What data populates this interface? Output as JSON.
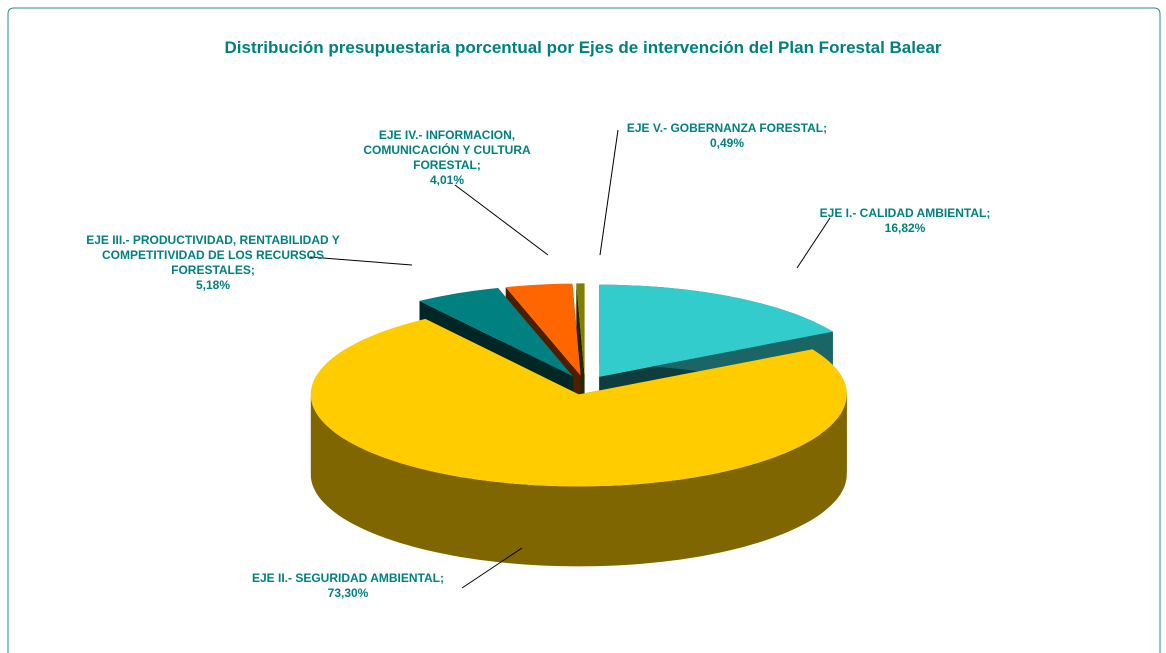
{
  "chart_data": {
    "type": "pie3d",
    "title": "Distribución presupuestaria porcentual por Ejes de intervención del Plan Forestal Balear",
    "categories": [
      "EJE I.- CALIDAD AMBIENTAL;",
      "EJE II.- SEGURIDAD AMBIENTAL;",
      "EJE III.-  PRODUCTIVIDAD, RENTABILIDAD Y COMPETITIVIDAD DE LOS RECURSOS FORESTALES;",
      "EJE IV.- INFORMACION, COMUNICACIÓN Y CULTURA FORESTAL;",
      "EJE V.- GOBERNANZA FORESTAL;"
    ],
    "values": [
      16.82,
      73.3,
      5.18,
      4.01,
      0.49
    ],
    "value_labels": [
      "16,82%",
      "73,30%",
      "5,18%",
      "4,01%",
      "0,49%"
    ],
    "colors": [
      "#33CCCC",
      "#FFCC00",
      "#008080",
      "#FF6600",
      "#808000"
    ]
  }
}
